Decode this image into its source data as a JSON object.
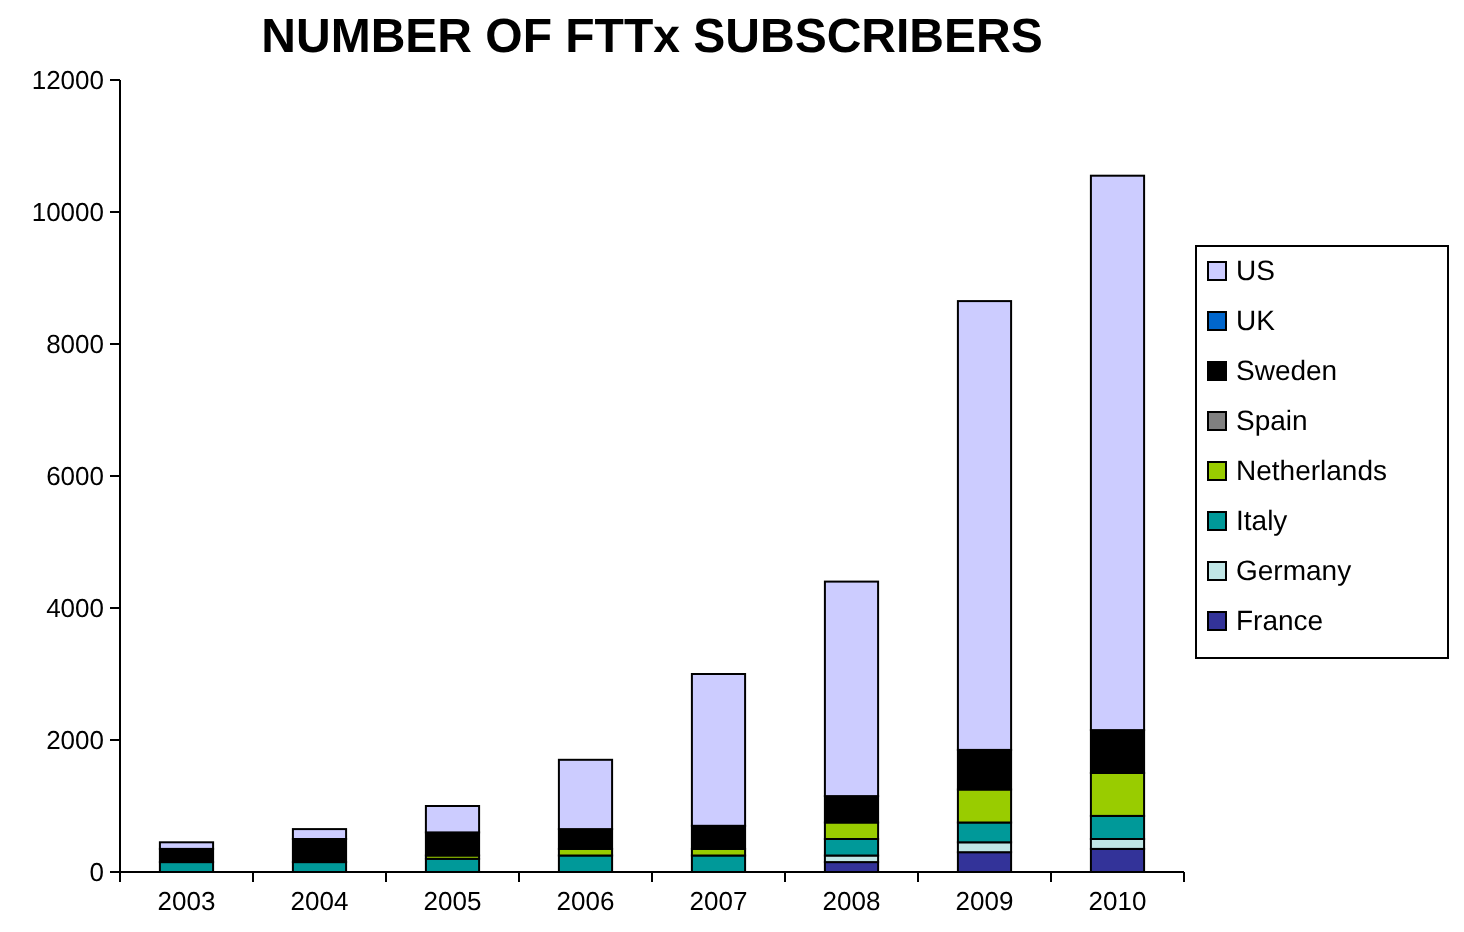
{
  "chart_data": {
    "type": "bar",
    "title": "NUMBER OF FTTx SUBSCRIBERS",
    "stacked": true,
    "categories": [
      "2003",
      "2004",
      "2005",
      "2006",
      "2007",
      "2008",
      "2009",
      "2010"
    ],
    "series": [
      {
        "name": "France",
        "color": "#333399",
        "values": [
          0,
          0,
          0,
          null,
          null,
          150,
          300,
          350
        ]
      },
      {
        "name": "Germany",
        "color": "#c0e6e6",
        "values": [
          0,
          0,
          0,
          0,
          null,
          100,
          150,
          150
        ]
      },
      {
        "name": "Italy",
        "color": "#009999",
        "values": [
          150,
          150,
          200,
          250,
          250,
          250,
          300,
          350
        ]
      },
      {
        "name": "Netherlands",
        "color": "#99cc00",
        "values": [
          0,
          0,
          50,
          100,
          100,
          250,
          500,
          650
        ]
      },
      {
        "name": "Spain",
        "color": "#808080",
        "values": [
          0,
          0,
          0,
          0,
          0,
          0,
          0,
          0
        ]
      },
      {
        "name": "Sweden",
        "color": "#000000",
        "values": [
          200,
          350,
          350,
          300,
          350,
          400,
          600,
          650
        ]
      },
      {
        "name": "UK",
        "color": "#0066cc",
        "values": [
          0,
          0,
          0,
          0,
          0,
          0,
          0,
          0
        ]
      },
      {
        "name": "US",
        "color": "#ccccff",
        "values": [
          100,
          150,
          400,
          1050,
          2300,
          3250,
          6800,
          8400
        ]
      }
    ],
    "ylim": [
      0,
      12000
    ],
    "yticks": [
      0,
      2000,
      4000,
      6000,
      8000,
      10000,
      12000
    ],
    "grid": false,
    "legend": "right"
  }
}
